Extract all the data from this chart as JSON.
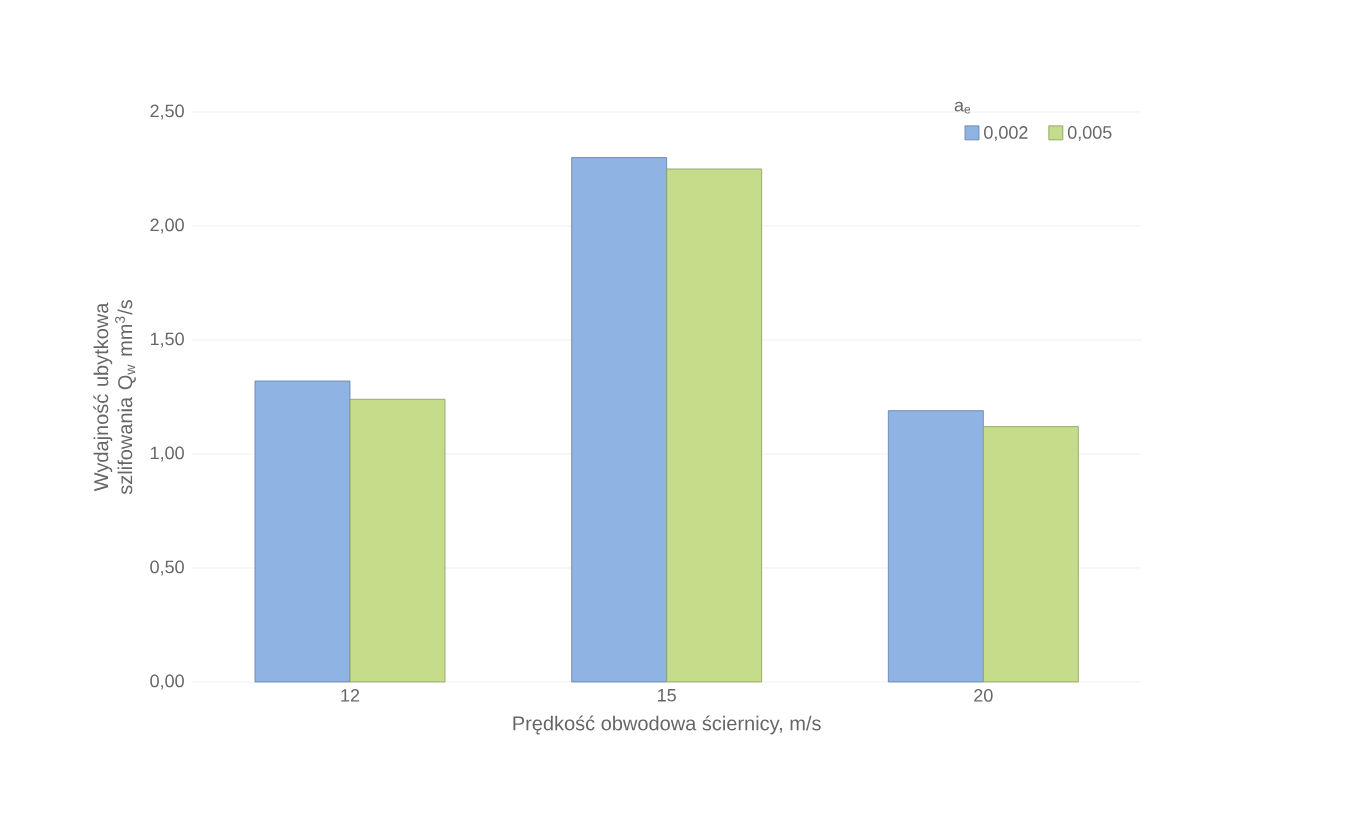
{
  "chart_data": {
    "type": "bar",
    "categories": [
      "12",
      "15",
      "20"
    ],
    "series": [
      {
        "name": "0,002",
        "color": "#8fb4e3",
        "values": [
          1.32,
          2.3,
          1.19
        ]
      },
      {
        "name": "0,005",
        "color": "#c5dc8a",
        "values": [
          1.24,
          2.25,
          1.12
        ]
      }
    ],
    "xlabel": "Prędkość obwodowa ściernicy, m/s",
    "ylabel": "Wydajność ubytkowa szlifowania Q$_{w}$ mm$^{3}$/s",
    "legend_title": "a$_{e}$",
    "legend": "top right",
    "grid": "y",
    "ylim": [
      0,
      2.5
    ],
    "yticks": [
      {
        "value": 0,
        "label": "0,00"
      },
      {
        "value": 0.5,
        "label": "0,50"
      },
      {
        "value": 1,
        "label": "1,00"
      },
      {
        "value": 1.5,
        "label": "1,50"
      },
      {
        "value": 2,
        "label": "2,00"
      },
      {
        "value": 2.5,
        "label": "2,50"
      }
    ]
  }
}
